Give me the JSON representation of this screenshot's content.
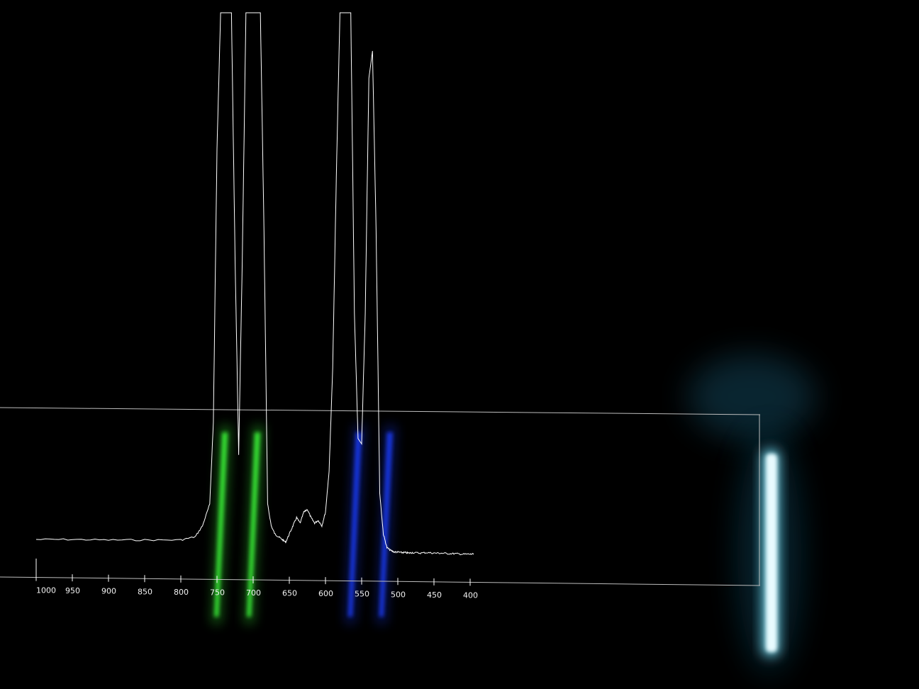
{
  "colors": {
    "background": "#000000",
    "trace": "#ffffff",
    "green_band": "#3dff3a",
    "blue_band": "#1d3cff",
    "lamp": "#7fe9ff"
  },
  "chart_data": {
    "type": "line",
    "title": "",
    "xlabel": "",
    "ylabel": "",
    "x_reversed": true,
    "xlim": [
      1000,
      400
    ],
    "ylim": [
      0,
      1
    ],
    "xticks": [
      1000,
      950,
      900,
      850,
      800,
      750,
      700,
      650,
      600,
      550,
      500,
      450,
      400
    ],
    "xtick_labels": [
      "1000",
      "950",
      "900",
      "850",
      "800",
      "750",
      "700",
      "650",
      "600",
      "550",
      "500",
      "450",
      "400"
    ],
    "grid": false,
    "legend": "none",
    "series": [
      {
        "values_description_free": true,
        "x": [
          1000,
          950,
          900,
          850,
          800,
          780,
          770,
          760,
          755,
          750,
          745,
          740,
          735,
          730,
          725,
          720,
          715,
          710,
          705,
          700,
          695,
          690,
          685,
          680,
          675,
          670,
          665,
          660,
          655,
          650,
          645,
          640,
          635,
          630,
          625,
          620,
          615,
          610,
          605,
          600,
          595,
          590,
          585,
          580,
          575,
          570,
          565,
          560,
          555,
          550,
          545,
          540,
          535,
          530,
          525,
          520,
          515,
          510,
          505,
          500,
          495,
          490,
          485,
          480,
          470,
          460,
          450,
          440,
          430,
          420,
          410,
          400,
          395
        ],
        "y": [
          0.035,
          0.035,
          0.034,
          0.034,
          0.034,
          0.04,
          0.06,
          0.1,
          0.25,
          0.75,
          1.0,
          1.0,
          1.0,
          1.0,
          0.55,
          0.19,
          0.55,
          1.0,
          1.0,
          1.0,
          1.0,
          1.0,
          0.6,
          0.1,
          0.06,
          0.045,
          0.04,
          0.035,
          0.03,
          0.045,
          0.06,
          0.075,
          0.065,
          0.085,
          0.09,
          0.075,
          0.065,
          0.07,
          0.06,
          0.085,
          0.16,
          0.35,
          0.7,
          1.0,
          1.0,
          1.0,
          1.0,
          0.45,
          0.22,
          0.21,
          0.45,
          0.88,
          0.93,
          0.6,
          0.12,
          0.045,
          0.02,
          0.015,
          0.012,
          0.012,
          0.011,
          0.011,
          0.01,
          0.011,
          0.01,
          0.011,
          0.01,
          0.01,
          0.009,
          0.009,
          0.008,
          0.008,
          0.008
        ]
      }
    ]
  }
}
